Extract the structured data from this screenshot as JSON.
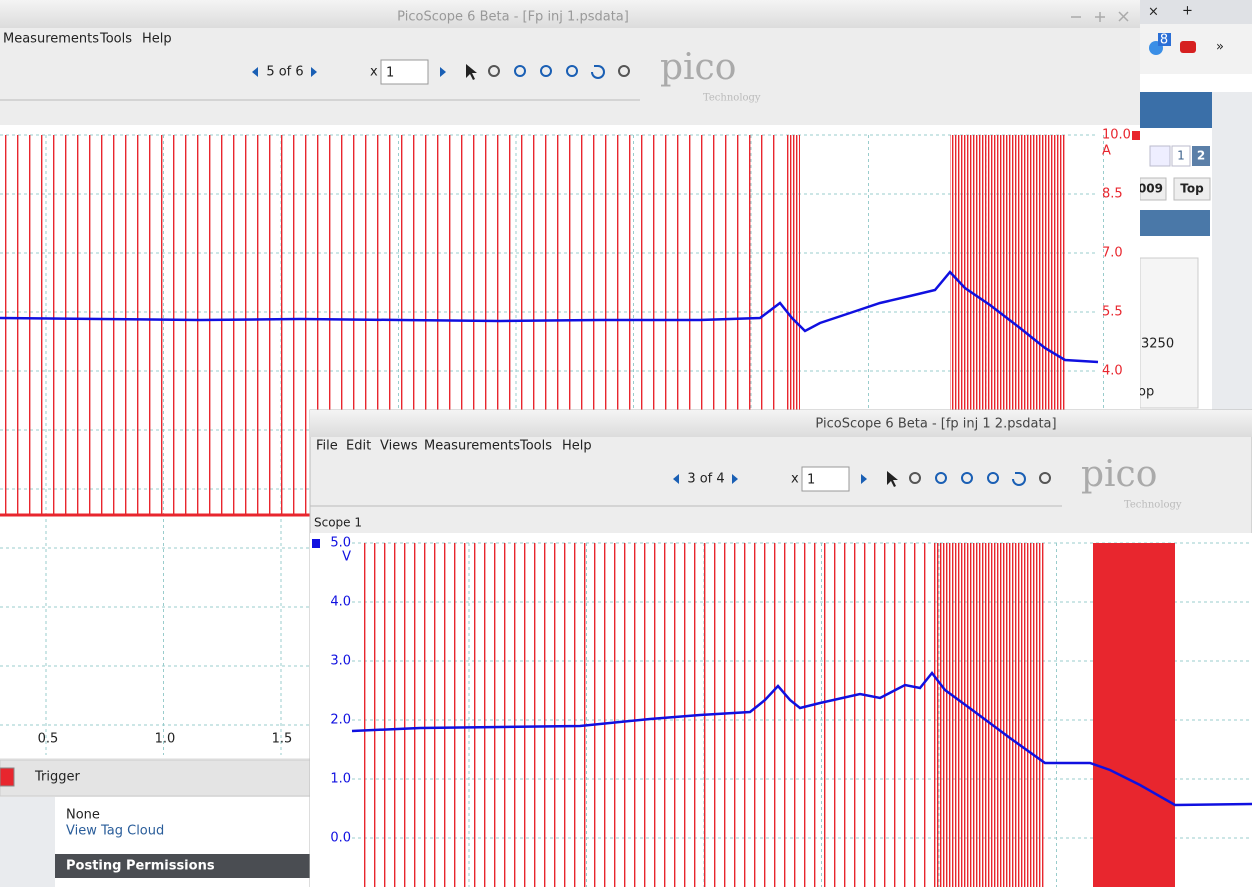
{
  "browser": {
    "tab_close": "×",
    "new_tab": "+",
    "badge": "8",
    "chevron": "»"
  },
  "forum": {
    "pages": [
      "1",
      "2"
    ],
    "post_number": "009",
    "top": "Top",
    "count": "3250",
    "fragment": "op",
    "tags": "None",
    "tag_cloud": "View Tag Cloud",
    "permissions": "Posting Permissions"
  },
  "window1": {
    "title": "PicoScope 6 Beta - [Fp inj 1.psdata]",
    "menu": [
      "Measurements",
      "Tools",
      "Help"
    ],
    "page_counter": "5 of 6",
    "zoom_label": "x",
    "zoom_value": "1",
    "logo": "pico",
    "logo_sub": "Technology",
    "y_unit": "A",
    "y_ticks": [
      "10.0",
      "8.5",
      "7.0",
      "5.5",
      "4.0"
    ],
    "x_ticks": [
      "0.5",
      "1.0",
      "1.5"
    ],
    "trigger": "Trigger"
  },
  "window2": {
    "title": "PicoScope 6 Beta - [fp inj 1 2.psdata]",
    "menu": [
      "File",
      "Edit",
      "Views",
      "Measurements",
      "Tools",
      "Help"
    ],
    "page_counter": "3 of 4",
    "zoom_label": "x",
    "zoom_value": "1",
    "logo": "pico",
    "logo_sub": "Technology",
    "scope": "Scope 1",
    "y_unit": "V",
    "y_ticks": [
      "5.0",
      "4.0",
      "3.0",
      "2.0",
      "1.0",
      "0.0"
    ]
  }
}
